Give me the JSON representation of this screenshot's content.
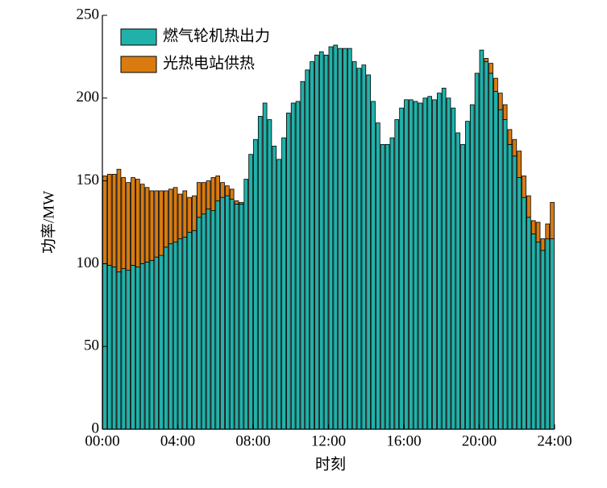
{
  "chart_data": {
    "type": "stacked-histogram",
    "xlabel": "时刻",
    "ylabel": "功率/MW",
    "bins": [
      0,
      0.25,
      0.5,
      0.75,
      1,
      1.25,
      1.5,
      1.75,
      2,
      2.25,
      2.5,
      2.75,
      3,
      3.25,
      3.5,
      3.75,
      4,
      4.25,
      4.5,
      4.75,
      5,
      5.25,
      5.5,
      5.75,
      6,
      6.25,
      6.5,
      6.75,
      7,
      7.25,
      7.5,
      7.75,
      8,
      8.25,
      8.5,
      8.75,
      9,
      9.25,
      9.5,
      9.75,
      10,
      10.25,
      10.5,
      10.75,
      11,
      11.25,
      11.5,
      11.75,
      12,
      12.25,
      12.5,
      12.75,
      13,
      13.25,
      13.5,
      13.75,
      14,
      14.25,
      14.5,
      14.75,
      15,
      15.25,
      15.5,
      15.75,
      16,
      16.25,
      16.5,
      16.75,
      17,
      17.25,
      17.5,
      17.75,
      18,
      18.25,
      18.5,
      18.75,
      19,
      19.25,
      19.5,
      19.75,
      20,
      20.25,
      20.5,
      20.75,
      21,
      21.25,
      21.5,
      21.75,
      22,
      22.25,
      22.5,
      22.75,
      23,
      23.25,
      23.5,
      23.75,
      24
    ],
    "series": [
      {
        "name": "燃气轮机热出力",
        "color": "#20b2aa",
        "values": [
          100,
          99,
          98,
          95,
          97,
          96,
          99,
          98,
          100,
          101,
          102,
          104,
          105,
          110,
          112,
          113,
          115,
          116,
          119,
          120,
          128,
          130,
          133,
          132,
          138,
          140,
          141,
          139,
          136,
          136,
          151,
          166,
          175,
          189,
          197,
          187,
          171,
          163,
          176,
          191,
          197,
          198,
          210,
          217,
          222,
          226,
          228,
          226,
          231,
          232,
          230,
          230,
          230,
          222,
          218,
          220,
          214,
          198,
          185,
          172,
          172,
          176,
          187,
          194,
          199,
          199,
          198,
          197,
          200,
          201,
          199,
          203,
          206,
          200,
          194,
          179,
          172,
          186,
          196,
          215,
          229,
          222,
          215,
          204,
          193,
          187,
          172,
          165,
          152,
          140,
          128,
          118,
          113,
          108,
          115,
          115
        ]
      },
      {
        "name": "光热电站供热",
        "color": "#d97b0f",
        "values": [
          53,
          55,
          56,
          62,
          55,
          53,
          53,
          53,
          48,
          45,
          42,
          40,
          39,
          34,
          33,
          33,
          27,
          28,
          21,
          21,
          21,
          19,
          17,
          20,
          15,
          9,
          6,
          6,
          2,
          1,
          0,
          0,
          0,
          0,
          0,
          0,
          0,
          0,
          0,
          0,
          0,
          0,
          0,
          0,
          0,
          0,
          0,
          0,
          0,
          0,
          0,
          0,
          0,
          0,
          0,
          0,
          0,
          0,
          0,
          0,
          0,
          0,
          0,
          0,
          0,
          0,
          0,
          0,
          0,
          0,
          0,
          0,
          0,
          0,
          0,
          0,
          0,
          0,
          0,
          0,
          0,
          2,
          6,
          8,
          10,
          9,
          9,
          10,
          16,
          13,
          13,
          8,
          12,
          7,
          9,
          22
        ]
      }
    ],
    "xlim": [
      0,
      24
    ],
    "xticks": [
      {
        "value": 0,
        "label": "00:00"
      },
      {
        "value": 4,
        "label": "04:00"
      },
      {
        "value": 8,
        "label": "08:00"
      },
      {
        "value": 12,
        "label": "12:00"
      },
      {
        "value": 16,
        "label": "16:00"
      },
      {
        "value": 20,
        "label": "20:00"
      },
      {
        "value": 24,
        "label": "24:00"
      }
    ],
    "ylim": [
      0,
      250
    ],
    "yticks": [
      0,
      50,
      100,
      150,
      200,
      250
    ],
    "legend": "upper-left"
  }
}
